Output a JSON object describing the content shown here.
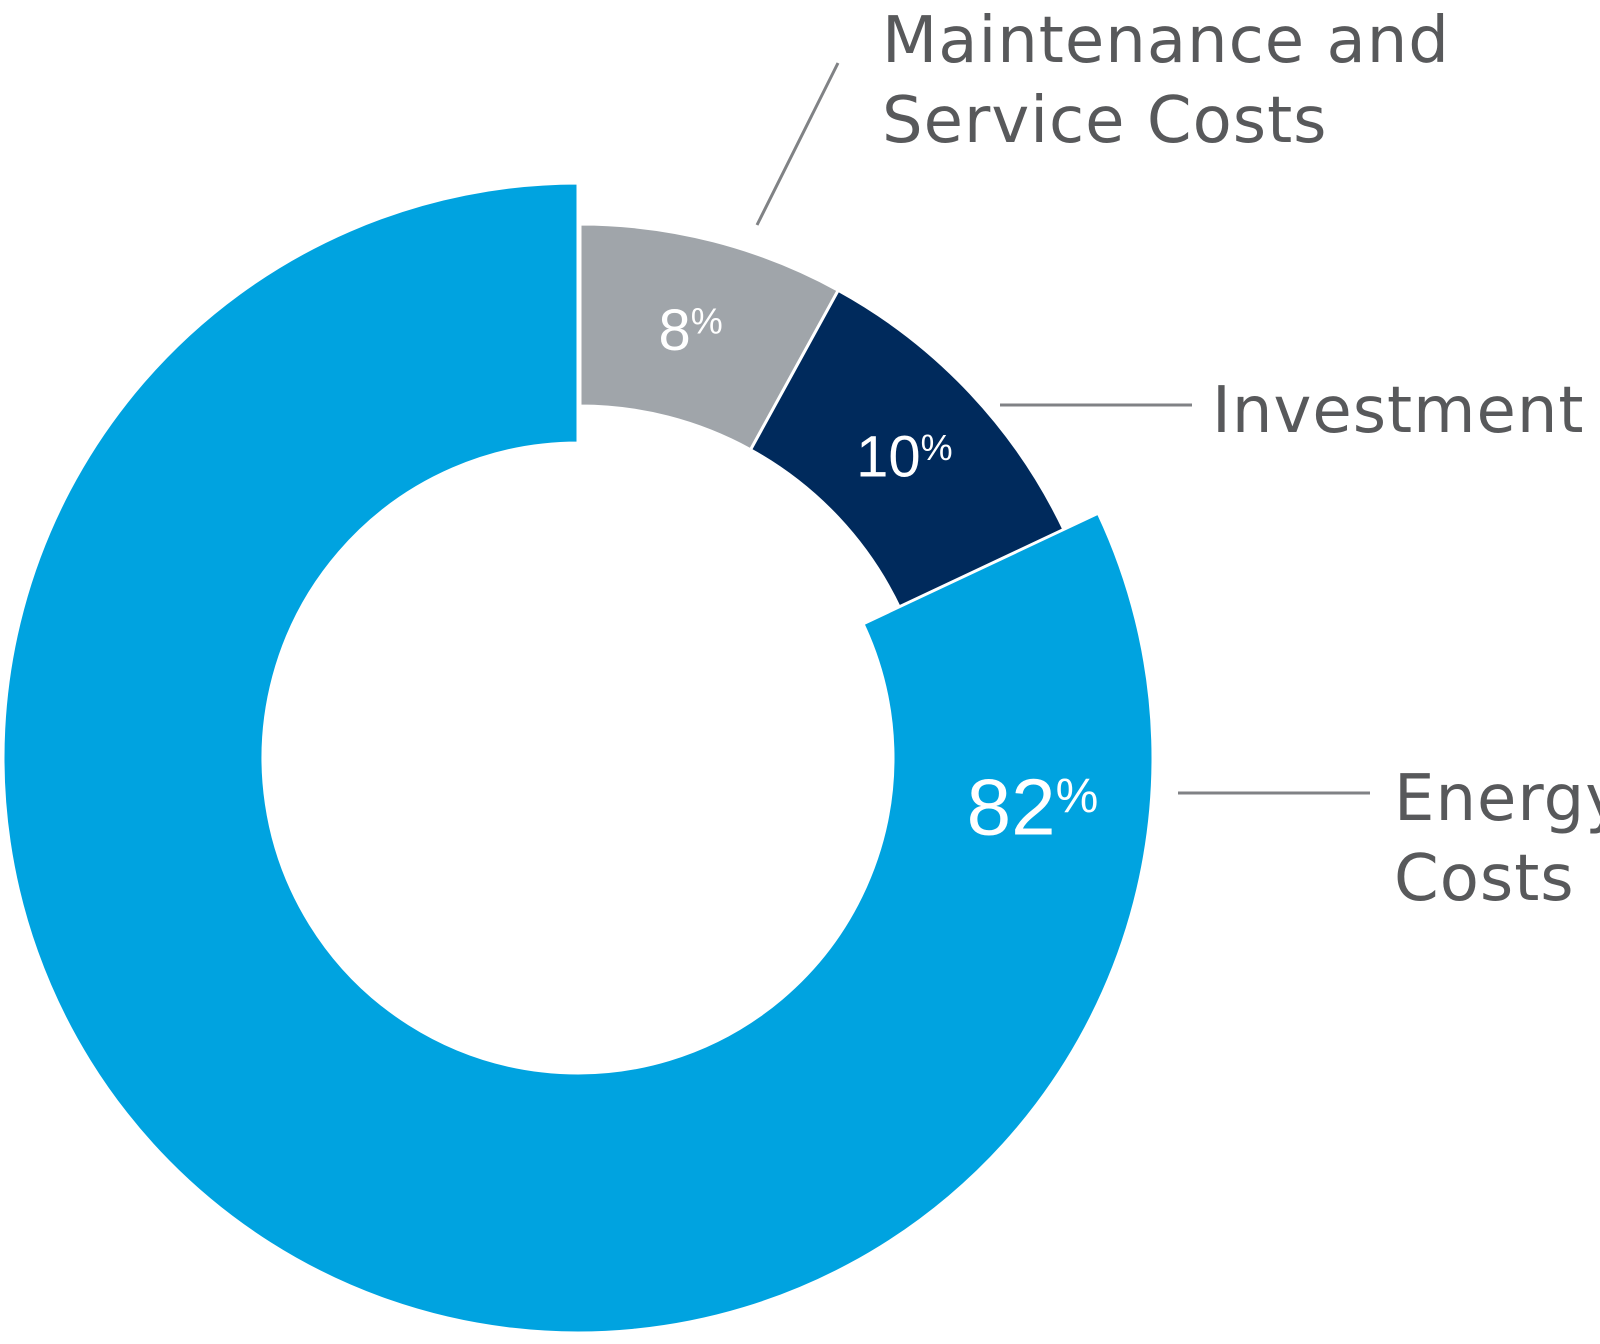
{
  "chart_data": {
    "type": "pie",
    "style": "donut",
    "slices": [
      {
        "label_lines": [
          "Maintenance and",
          "Service Costs"
        ],
        "value": 8,
        "display_value": "8",
        "unit": "%",
        "color": "#a0a5aa"
      },
      {
        "label_lines": [
          "Investment"
        ],
        "value": 10,
        "display_value": "10",
        "unit": "%",
        "color": "#002a5c"
      },
      {
        "label_lines": [
          "Energy",
          "Costs"
        ],
        "value": 82,
        "display_value": "82",
        "unit": "%",
        "color": "#00a3e0"
      }
    ],
    "start_angle_deg": 0,
    "direction": "clockwise",
    "exploded_slice": "Energy Costs",
    "legend": "none",
    "label_placement": "leader-lines-right"
  }
}
